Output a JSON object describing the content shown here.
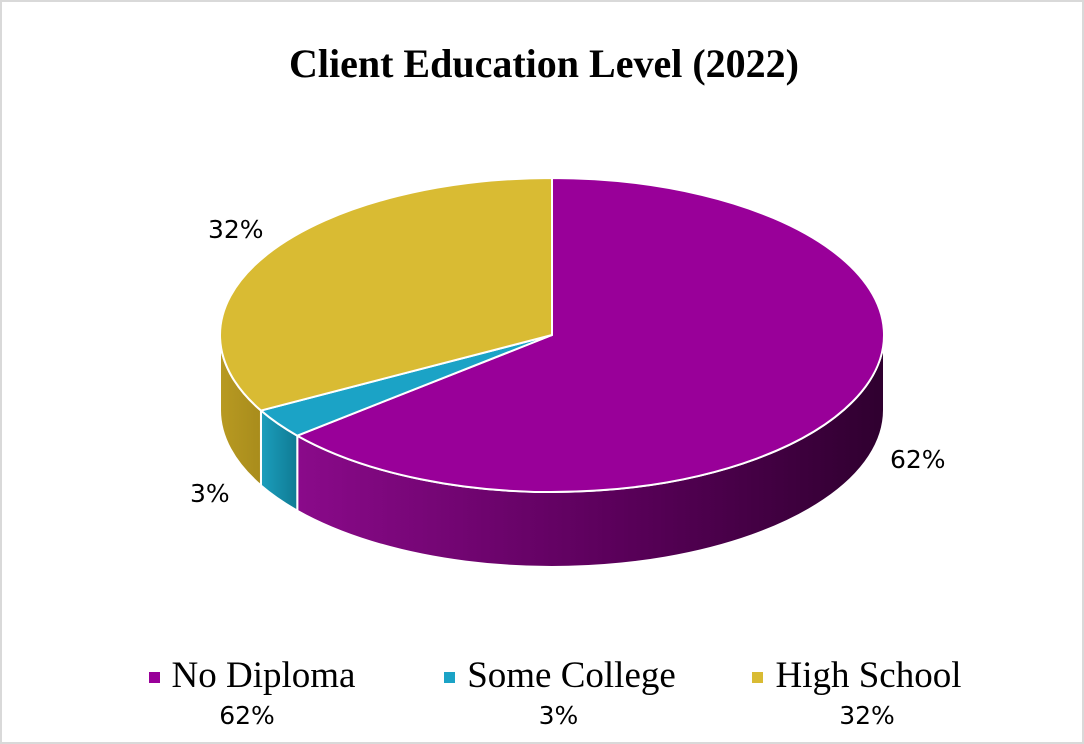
{
  "chart_data": {
    "type": "pie",
    "title": "Client Education Level (2022)",
    "categories": [
      "No Diploma",
      "Some College",
      "High School"
    ],
    "values": [
      62,
      3,
      32
    ],
    "data_labels": [
      "62%",
      "3%",
      "32%"
    ],
    "legend": {
      "placement": "bottom",
      "entries": [
        {
          "name": "No Diploma",
          "value_label": "62%"
        },
        {
          "name": "Some College",
          "value_label": "3%"
        },
        {
          "name": "High School",
          "value_label": "32%"
        }
      ]
    },
    "style": "3d",
    "colors": [
      "#990099",
      "#1ba3c6",
      "#d9bb33"
    ]
  }
}
